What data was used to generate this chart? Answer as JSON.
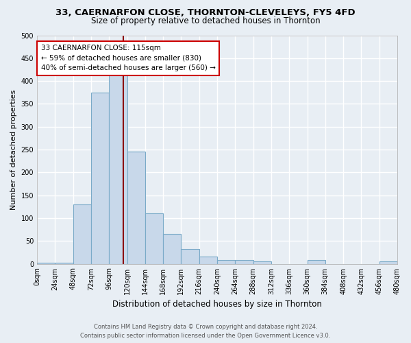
{
  "title": "33, CAERNARFON CLOSE, THORNTON-CLEVELEYS, FY5 4FD",
  "subtitle": "Size of property relative to detached houses in Thornton",
  "xlabel": "Distribution of detached houses by size in Thornton",
  "ylabel": "Number of detached properties",
  "bar_color": "#c8d8ea",
  "bar_edge_color": "#7aaac8",
  "bin_edges": [
    0,
    24,
    48,
    72,
    96,
    120,
    144,
    168,
    192,
    216,
    240,
    264,
    288,
    312,
    336,
    360,
    384,
    408,
    432,
    456,
    480
  ],
  "bar_heights": [
    3,
    3,
    130,
    375,
    415,
    245,
    110,
    65,
    33,
    16,
    8,
    8,
    5,
    0,
    0,
    8,
    0,
    0,
    0,
    5
  ],
  "tick_labels": [
    "0sqm",
    "24sqm",
    "48sqm",
    "72sqm",
    "96sqm",
    "120sqm",
    "144sqm",
    "168sqm",
    "192sqm",
    "216sqm",
    "240sqm",
    "264sqm",
    "288sqm",
    "312sqm",
    "336sqm",
    "360sqm",
    "384sqm",
    "408sqm",
    "432sqm",
    "456sqm",
    "480sqm"
  ],
  "ylim": [
    0,
    500
  ],
  "yticks": [
    0,
    50,
    100,
    150,
    200,
    250,
    300,
    350,
    400,
    450,
    500
  ],
  "vline_x": 115,
  "vline_color": "#8b0000",
  "annotation_line1": "33 CAERNARFON CLOSE: 115sqm",
  "annotation_line2": "← 59% of detached houses are smaller (830)",
  "annotation_line3": "40% of semi-detached houses are larger (560) →",
  "annotation_box_color": "#ffffff",
  "annotation_box_edge_color": "#cc0000",
  "footer_line1": "Contains HM Land Registry data © Crown copyright and database right 2024.",
  "footer_line2": "Contains public sector information licensed under the Open Government Licence v3.0.",
  "bg_color": "#e8eef4",
  "plot_bg_color": "#e8eef4",
  "grid_color": "#ffffff",
  "title_fontsize": 9.5,
  "subtitle_fontsize": 8.5,
  "tick_fontsize": 7,
  "ylabel_fontsize": 8,
  "xlabel_fontsize": 8.5,
  "annotation_fontsize": 7.5,
  "footer_fontsize": 6
}
